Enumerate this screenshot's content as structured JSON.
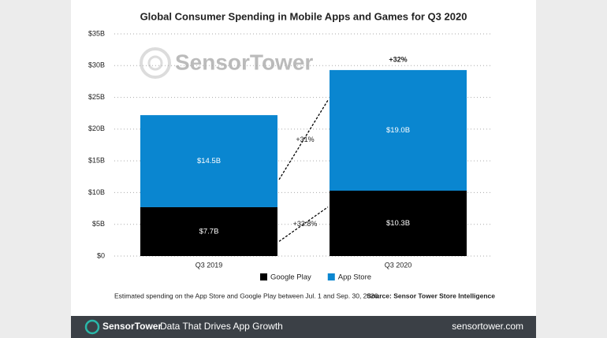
{
  "chart_data": {
    "type": "stacked_bar",
    "title": "Global Consumer Spending in Mobile Apps and Games for Q3 2020",
    "watermark": "SensorTower",
    "categories": [
      "Q3 2019",
      "Q3 2020"
    ],
    "series": [
      {
        "name": "Google Play",
        "color": "#000000",
        "values": [
          7.7,
          10.3
        ],
        "value_labels": [
          "$7.7B",
          "$10.3B"
        ]
      },
      {
        "name": "App Store",
        "color": "#0a86d0",
        "values": [
          14.5,
          19.0
        ],
        "value_labels": [
          "$14.5B",
          "$19.0B"
        ]
      }
    ],
    "growth_labels": [
      "+33.8%",
      "+31%"
    ],
    "total_growth_label": "+32%",
    "ylim": [
      0,
      35
    ],
    "yticks": [
      {
        "value": 0,
        "label": "$0"
      },
      {
        "value": 5,
        "label": "$5B"
      },
      {
        "value": 10,
        "label": "$10B"
      },
      {
        "value": 15,
        "label": "$15B"
      },
      {
        "value": 20,
        "label": "$20B"
      },
      {
        "value": 25,
        "label": "$25B"
      },
      {
        "value": 30,
        "label": "$30B"
      },
      {
        "value": 35,
        "label": "$35B"
      }
    ],
    "grid": true,
    "note": "Estimated spending on the App Store and Google Play between Jul. 1 and Sep. 30, 2020.",
    "source": "Source: Sensor Tower Store Intelligence"
  },
  "footer": {
    "brand": "SensorTower",
    "tagline": "Data That Drives App Growth",
    "url": "sensortower.com"
  }
}
